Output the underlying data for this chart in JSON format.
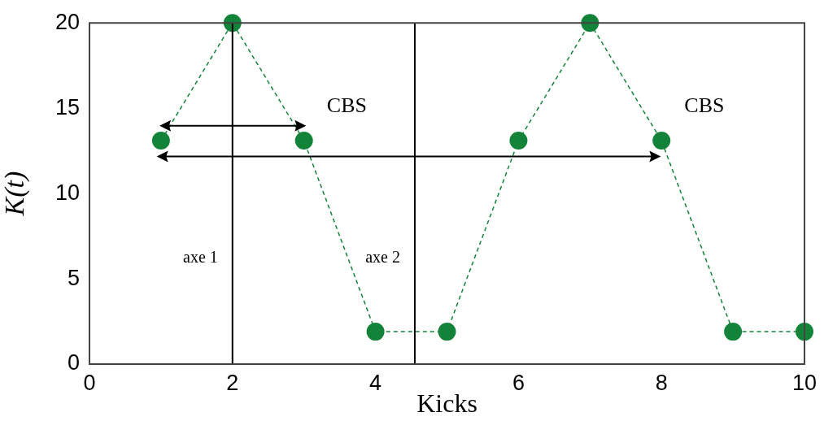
{
  "chart_data": {
    "type": "line",
    "xlabel": "Kicks",
    "ylabel": "K(t)",
    "x": [
      1,
      2,
      3,
      4,
      5,
      6,
      7,
      8,
      9,
      10
    ],
    "series": [
      {
        "color": "#13833a",
        "values": [
          13.1,
          20,
          13.1,
          1.9,
          1.9,
          13.1,
          20,
          13.1,
          1.9,
          1.9
        ]
      }
    ],
    "xlim": [
      0,
      10
    ],
    "xticks": [
      0,
      2,
      4,
      6,
      8,
      10
    ],
    "ylim": [
      0,
      20
    ],
    "yticks": [
      0,
      5,
      10,
      15,
      20
    ],
    "marker": "circle",
    "line_style": "dashed",
    "grid": false,
    "legend": false,
    "ref_lines": [
      {
        "axis": "x",
        "value": 2,
        "label": "axe 1",
        "color": "#000000"
      },
      {
        "axis": "x",
        "value": 4.55,
        "label": "axe 2",
        "color": "#000000"
      }
    ],
    "annotations": [
      "CBS",
      "CBS"
    ]
  }
}
